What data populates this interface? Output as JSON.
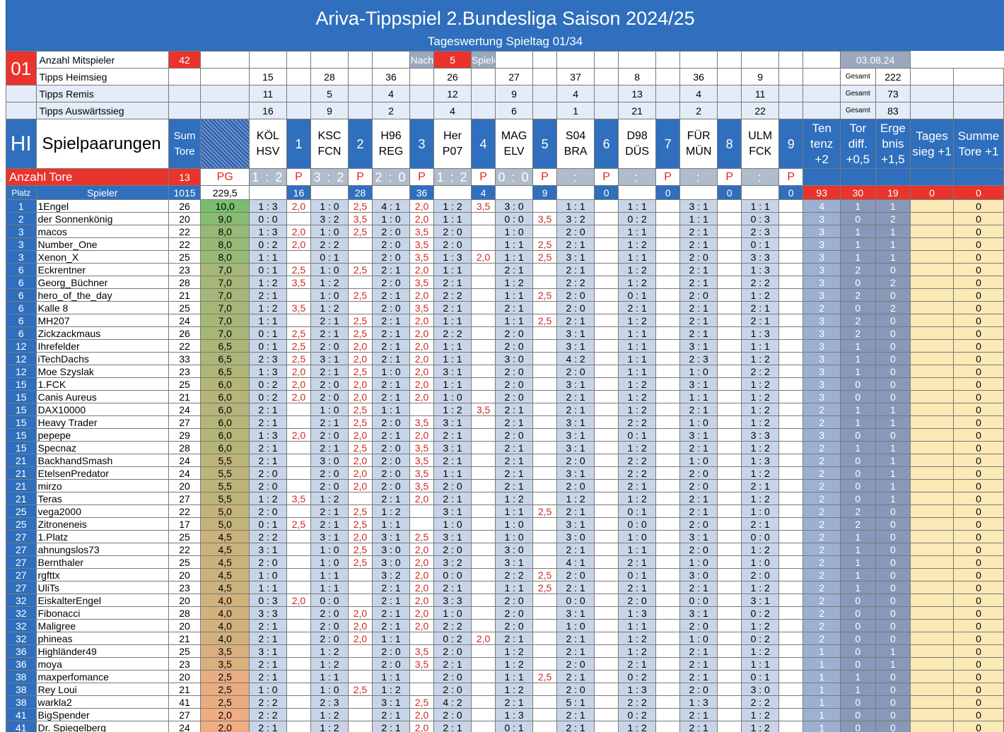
{
  "title": "Ariva-Tippspiel 2.Bundesliga Saison 2024/25",
  "subtitle": "Tageswertung Spieltag 01/34",
  "info": {
    "spieltag": "01",
    "anzahl_label": "Anzahl Mitspieler",
    "anzahl": "42",
    "nach": "Nach",
    "spiele_n": "5",
    "spielen": "Spielen",
    "date": "03.08.24"
  },
  "tipps": [
    {
      "label": "Tipps Heimsieg",
      "vals": [
        "15",
        "28",
        "36",
        "26",
        "27",
        "37",
        "8",
        "36",
        "9"
      ],
      "gesamt_label": "Gesamt",
      "gesamt": "222"
    },
    {
      "label": "Tipps Remis",
      "vals": [
        "11",
        "5",
        "4",
        "12",
        "9",
        "4",
        "13",
        "4",
        "11"
      ],
      "gesamt_label": "Gesamt",
      "gesamt": "73"
    },
    {
      "label": "Tipps Auswärtssieg",
      "vals": [
        "16",
        "9",
        "2",
        "4",
        "6",
        "1",
        "21",
        "2",
        "22"
      ],
      "gesamt_label": "Gesamt",
      "gesamt": "83"
    }
  ],
  "header": {
    "hi": "HI",
    "spielpaarungen": "Spielpaarungen",
    "sum_tore": "Sum Tore",
    "games": [
      {
        "teams": "KÖL HSV",
        "n": "1"
      },
      {
        "teams": "KSC FCN",
        "n": "2"
      },
      {
        "teams": "H96 REG",
        "n": "3"
      },
      {
        "teams": "Her P07",
        "n": "4"
      },
      {
        "teams": "MAG ELV",
        "n": "5"
      },
      {
        "teams": "S04 BRA",
        "n": "6"
      },
      {
        "teams": "D98 DÜS",
        "n": "7"
      },
      {
        "teams": "FÜR MÜN",
        "n": "8"
      },
      {
        "teams": "ULM FCK",
        "n": "9"
      }
    ],
    "bonus": [
      "Ten tenz +2",
      "Tor diff. +0,5",
      "Erge bnis +1,5",
      "Tages sieg +1",
      "Summe Tore +1"
    ]
  },
  "result_row": {
    "label": "Anzahl Tore",
    "tore": "13",
    "pg": "PG",
    "scores": [
      "1 : 2",
      "3 : 2",
      "2 : 0",
      "1 : 2",
      "0 : 0",
      ":",
      ":",
      ":",
      ":"
    ],
    "p": "P"
  },
  "sum_row": {
    "platz": "Platz",
    "spieler": "Spieler",
    "tore": "1015",
    "pg": "229,5",
    "game_pts": [
      "16",
      "28",
      "36",
      "4",
      "9",
      "0",
      "0",
      "0",
      "0"
    ],
    "bonus": [
      "93",
      "30",
      "19",
      "0",
      "0"
    ]
  },
  "players": [
    [
      "1",
      "1Engel",
      "26",
      "10,0",
      "1 : 3",
      "2,0",
      "1 : 0",
      "2,5",
      "4 : 1",
      "2,0",
      "1 : 2",
      "3,5",
      "3 : 0",
      "",
      "1 : 1",
      "",
      "1 : 1",
      "",
      "3 : 1",
      "",
      "1 : 1",
      "",
      "4",
      "1",
      "1",
      "",
      "0"
    ],
    [
      "2",
      "der Sonnenkönig",
      "20",
      "9,0",
      "0 : 0",
      "",
      "3 : 2",
      "3,5",
      "1 : 0",
      "2,0",
      "1 : 1",
      "",
      "0 : 0",
      "3,5",
      "3 : 2",
      "",
      "0 : 2",
      "",
      "1 : 1",
      "",
      "0 : 3",
      "",
      "3",
      "0",
      "2",
      "",
      "0"
    ],
    [
      "3",
      "macos",
      "22",
      "8,0",
      "1 : 3",
      "2,0",
      "1 : 0",
      "2,5",
      "2 : 0",
      "3,5",
      "2 : 0",
      "",
      "1 : 0",
      "",
      "2 : 0",
      "",
      "1 : 1",
      "",
      "2 : 1",
      "",
      "2 : 3",
      "",
      "3",
      "1",
      "1",
      "",
      "0"
    ],
    [
      "3",
      "Number_One",
      "22",
      "8,0",
      "0 : 2",
      "2,0",
      "2 : 2",
      "",
      "2 : 0",
      "3,5",
      "2 : 0",
      "",
      "1 : 1",
      "2,5",
      "2 : 1",
      "",
      "1 : 2",
      "",
      "2 : 1",
      "",
      "0 : 1",
      "",
      "3",
      "1",
      "1",
      "",
      "0"
    ],
    [
      "3",
      "Xenon_X",
      "25",
      "8,0",
      "1 : 1",
      "",
      "0 : 1",
      "",
      "2 : 0",
      "3,5",
      "1 : 3",
      "2,0",
      "1 : 1",
      "2,5",
      "3 : 1",
      "",
      "1 : 1",
      "",
      "2 : 0",
      "",
      "3 : 3",
      "",
      "3",
      "1",
      "1",
      "",
      "0"
    ],
    [
      "6",
      "Eckrentner",
      "23",
      "7,0",
      "0 : 1",
      "2,5",
      "1 : 0",
      "2,5",
      "2 : 1",
      "2,0",
      "1 : 1",
      "",
      "2 : 1",
      "",
      "2 : 1",
      "",
      "1 : 2",
      "",
      "2 : 1",
      "",
      "1 : 3",
      "",
      "3",
      "2",
      "0",
      "",
      "0"
    ],
    [
      "6",
      "Georg_Büchner",
      "28",
      "7,0",
      "1 : 2",
      "3,5",
      "1 : 2",
      "",
      "2 : 0",
      "3,5",
      "2 : 1",
      "",
      "1 : 2",
      "",
      "2 : 2",
      "",
      "1 : 2",
      "",
      "2 : 1",
      "",
      "2 : 2",
      "",
      "3",
      "0",
      "2",
      "",
      "0"
    ],
    [
      "6",
      "hero_of_the_day",
      "21",
      "7,0",
      "2 : 1",
      "",
      "1 : 0",
      "2,5",
      "2 : 1",
      "2,0",
      "2 : 2",
      "",
      "1 : 1",
      "2,5",
      "2 : 0",
      "",
      "0 : 1",
      "",
      "2 : 0",
      "",
      "1 : 2",
      "",
      "3",
      "2",
      "0",
      "",
      "0"
    ],
    [
      "6",
      "Kalle 8",
      "25",
      "7,0",
      "1 : 2",
      "3,5",
      "1 : 2",
      "",
      "2 : 0",
      "3,5",
      "2 : 1",
      "",
      "2 : 1",
      "",
      "2 : 0",
      "",
      "2 : 1",
      "",
      "2 : 1",
      "",
      "2 : 1",
      "",
      "2",
      "0",
      "2",
      "",
      "0"
    ],
    [
      "6",
      "MH207",
      "24",
      "7,0",
      "1 : 1",
      "",
      "2 : 1",
      "2,5",
      "2 : 1",
      "2,0",
      "1 : 1",
      "",
      "1 : 1",
      "2,5",
      "2 : 1",
      "",
      "1 : 2",
      "",
      "2 : 1",
      "",
      "2 : 1",
      "",
      "3",
      "2",
      "0",
      "",
      "0"
    ],
    [
      "6",
      "Zickzackmaus",
      "26",
      "7,0",
      "0 : 1",
      "2,5",
      "2 : 1",
      "2,5",
      "2 : 1",
      "2,0",
      "2 : 2",
      "",
      "2 : 0",
      "",
      "3 : 1",
      "",
      "1 : 1",
      "",
      "2 : 1",
      "",
      "1 : 3",
      "",
      "3",
      "2",
      "0",
      "",
      "0"
    ],
    [
      "12",
      "Ihrefelder",
      "22",
      "6,5",
      "0 : 1",
      "2,5",
      "2 : 0",
      "2,0",
      "2 : 1",
      "2,0",
      "1 : 1",
      "",
      "2 : 0",
      "",
      "3 : 1",
      "",
      "1 : 1",
      "",
      "3 : 1",
      "",
      "1 : 1",
      "",
      "3",
      "1",
      "0",
      "",
      "0"
    ],
    [
      "12",
      "iTechDachs",
      "33",
      "6,5",
      "2 : 3",
      "2,5",
      "3 : 1",
      "2,0",
      "2 : 1",
      "2,0",
      "1 : 1",
      "",
      "3 : 0",
      "",
      "4 : 2",
      "",
      "1 : 1",
      "",
      "2 : 3",
      "",
      "1 : 2",
      "",
      "3",
      "1",
      "0",
      "",
      "0"
    ],
    [
      "12",
      "Moe Szyslak",
      "23",
      "6,5",
      "1 : 3",
      "2,0",
      "2 : 1",
      "2,5",
      "1 : 0",
      "2,0",
      "3 : 1",
      "",
      "2 : 0",
      "",
      "2 : 0",
      "",
      "1 : 1",
      "",
      "1 : 0",
      "",
      "2 : 2",
      "",
      "3",
      "1",
      "0",
      "",
      "0"
    ],
    [
      "15",
      "1.FCK",
      "25",
      "6,0",
      "0 : 2",
      "2,0",
      "2 : 0",
      "2,0",
      "2 : 1",
      "2,0",
      "1 : 1",
      "",
      "2 : 0",
      "",
      "3 : 1",
      "",
      "1 : 2",
      "",
      "3 : 1",
      "",
      "1 : 2",
      "",
      "3",
      "0",
      "0",
      "",
      "0"
    ],
    [
      "15",
      "Canis Aureus",
      "21",
      "6,0",
      "0 : 2",
      "2,0",
      "2 : 0",
      "2,0",
      "2 : 1",
      "2,0",
      "1 : 0",
      "",
      "2 : 0",
      "",
      "2 : 1",
      "",
      "1 : 2",
      "",
      "1 : 1",
      "",
      "1 : 2",
      "",
      "3",
      "0",
      "0",
      "",
      "0"
    ],
    [
      "15",
      "DAX10000",
      "24",
      "6,0",
      "2 : 1",
      "",
      "1 : 0",
      "2,5",
      "1 : 1",
      "",
      "1 : 2",
      "3,5",
      "2 : 1",
      "",
      "2 : 1",
      "",
      "1 : 2",
      "",
      "2 : 1",
      "",
      "1 : 2",
      "",
      "2",
      "1",
      "1",
      "",
      "0"
    ],
    [
      "15",
      "Heavy Trader",
      "27",
      "6,0",
      "2 : 1",
      "",
      "2 : 1",
      "2,5",
      "2 : 0",
      "3,5",
      "3 : 1",
      "",
      "2 : 1",
      "",
      "3 : 1",
      "",
      "2 : 2",
      "",
      "1 : 0",
      "",
      "1 : 2",
      "",
      "2",
      "1",
      "1",
      "",
      "0"
    ],
    [
      "15",
      "pepepe",
      "29",
      "6,0",
      "1 : 3",
      "2,0",
      "2 : 0",
      "2,0",
      "2 : 1",
      "2,0",
      "2 : 1",
      "",
      "2 : 0",
      "",
      "3 : 1",
      "",
      "0 : 1",
      "",
      "3 : 1",
      "",
      "3 : 3",
      "",
      "3",
      "0",
      "0",
      "",
      "0"
    ],
    [
      "15",
      "Specnaz",
      "28",
      "6,0",
      "2 : 1",
      "",
      "2 : 1",
      "2,5",
      "2 : 0",
      "3,5",
      "3 : 1",
      "",
      "2 : 1",
      "",
      "3 : 1",
      "",
      "1 : 2",
      "",
      "2 : 1",
      "",
      "1 : 2",
      "",
      "2",
      "1",
      "1",
      "",
      "0"
    ],
    [
      "21",
      "BackhandSmash",
      "24",
      "5,5",
      "2 : 1",
      "",
      "3 : 0",
      "2,0",
      "2 : 0",
      "3,5",
      "2 : 1",
      "",
      "2 : 1",
      "",
      "2 : 0",
      "",
      "2 : 2",
      "",
      "1 : 0",
      "",
      "1 : 3",
      "",
      "2",
      "0",
      "1",
      "",
      "0"
    ],
    [
      "21",
      "EtelsenPredator",
      "24",
      "5,5",
      "2 : 0",
      "",
      "2 : 0",
      "2,0",
      "2 : 0",
      "3,5",
      "1 : 1",
      "",
      "2 : 1",
      "",
      "3 : 1",
      "",
      "2 : 2",
      "",
      "2 : 0",
      "",
      "1 : 2",
      "",
      "2",
      "0",
      "1",
      "",
      "0"
    ],
    [
      "21",
      "mirzo",
      "20",
      "5,5",
      "2 : 0",
      "",
      "2 : 0",
      "2,0",
      "2 : 0",
      "3,5",
      "2 : 0",
      "",
      "2 : 1",
      "",
      "2 : 0",
      "",
      "2 : 1",
      "",
      "2 : 0",
      "",
      "2 : 1",
      "",
      "2",
      "0",
      "1",
      "",
      "0"
    ],
    [
      "21",
      "Teras",
      "27",
      "5,5",
      "1 : 2",
      "3,5",
      "1 : 2",
      "",
      "2 : 1",
      "2,0",
      "2 : 1",
      "",
      "1 : 2",
      "",
      "1 : 2",
      "",
      "1 : 2",
      "",
      "2 : 1",
      "",
      "1 : 2",
      "",
      "2",
      "0",
      "1",
      "",
      "0"
    ],
    [
      "25",
      "vega2000",
      "22",
      "5,0",
      "2 : 0",
      "",
      "2 : 1",
      "2,5",
      "1 : 2",
      "",
      "3 : 1",
      "",
      "1 : 1",
      "2,5",
      "2 : 1",
      "",
      "0 : 1",
      "",
      "2 : 1",
      "",
      "1 : 0",
      "",
      "2",
      "2",
      "0",
      "",
      "0"
    ],
    [
      "25",
      "Zitroneneis",
      "17",
      "5,0",
      "0 : 1",
      "2,5",
      "2 : 1",
      "2,5",
      "1 : 1",
      "",
      "1 : 0",
      "",
      "1 : 0",
      "",
      "3 : 1",
      "",
      "0 : 0",
      "",
      "2 : 0",
      "",
      "2 : 1",
      "",
      "2",
      "2",
      "0",
      "",
      "0"
    ],
    [
      "27",
      "1.Platz",
      "25",
      "4,5",
      "2 : 2",
      "",
      "3 : 1",
      "2,0",
      "3 : 1",
      "2,5",
      "3 : 1",
      "",
      "1 : 0",
      "",
      "3 : 0",
      "",
      "1 : 0",
      "",
      "3 : 1",
      "",
      "0 : 0",
      "",
      "2",
      "1",
      "0",
      "",
      "0"
    ],
    [
      "27",
      "ahnungslos73",
      "22",
      "4,5",
      "3 : 1",
      "",
      "1 : 0",
      "2,5",
      "3 : 0",
      "2,0",
      "2 : 0",
      "",
      "3 : 0",
      "",
      "2 : 1",
      "",
      "1 : 1",
      "",
      "2 : 0",
      "",
      "1 : 2",
      "",
      "2",
      "1",
      "0",
      "",
      "0"
    ],
    [
      "27",
      "Bernthaler",
      "25",
      "4,5",
      "2 : 0",
      "",
      "1 : 0",
      "2,5",
      "3 : 0",
      "2,0",
      "3 : 2",
      "",
      "3 : 1",
      "",
      "4 : 1",
      "",
      "2 : 1",
      "",
      "1 : 0",
      "",
      "1 : 0",
      "",
      "2",
      "1",
      "0",
      "",
      "0"
    ],
    [
      "27",
      "rgfttx",
      "20",
      "4,5",
      "1 : 0",
      "",
      "1 : 1",
      "",
      "3 : 2",
      "2,0",
      "0 : 0",
      "",
      "2 : 2",
      "2,5",
      "2 : 0",
      "",
      "0 : 1",
      "",
      "3 : 0",
      "",
      "2 : 0",
      "",
      "2",
      "1",
      "0",
      "",
      "0"
    ],
    [
      "27",
      "UliTs",
      "23",
      "4,5",
      "1 : 1",
      "",
      "1 : 1",
      "",
      "2 : 1",
      "2,0",
      "2 : 1",
      "",
      "1 : 1",
      "2,5",
      "2 : 1",
      "",
      "2 : 1",
      "",
      "2 : 1",
      "",
      "1 : 2",
      "",
      "2",
      "1",
      "0",
      "",
      "0"
    ],
    [
      "32",
      "EiskalterEngel",
      "20",
      "4,0",
      "0 : 3",
      "2,0",
      "0 : 0",
      "",
      "2 : 1",
      "2,0",
      "3 : 3",
      "",
      "2 : 0",
      "",
      "0 : 0",
      "",
      "2 : 0",
      "",
      "0 : 0",
      "",
      "3 : 1",
      "",
      "2",
      "0",
      "0",
      "",
      "0"
    ],
    [
      "32",
      "Fibonacci",
      "28",
      "4,0",
      "3 : 3",
      "",
      "2 : 0",
      "2,0",
      "2 : 1",
      "2,0",
      "1 : 0",
      "",
      "2 : 0",
      "",
      "3 : 1",
      "",
      "1 : 3",
      "",
      "3 : 1",
      "",
      "0 : 2",
      "",
      "2",
      "0",
      "0",
      "",
      "0"
    ],
    [
      "32",
      "Maligree",
      "20",
      "4,0",
      "2 : 1",
      "",
      "2 : 0",
      "2,0",
      "2 : 1",
      "2,0",
      "2 : 2",
      "",
      "2 : 0",
      "",
      "1 : 0",
      "",
      "1 : 1",
      "",
      "2 : 0",
      "",
      "1 : 2",
      "",
      "2",
      "0",
      "0",
      "",
      "0"
    ],
    [
      "32",
      "phineas",
      "21",
      "4,0",
      "2 : 1",
      "",
      "2 : 0",
      "2,0",
      "1 : 1",
      "",
      "0 : 2",
      "2,0",
      "2 : 1",
      "",
      "2 : 1",
      "",
      "1 : 2",
      "",
      "1 : 0",
      "",
      "0 : 2",
      "",
      "2",
      "0",
      "0",
      "",
      "0"
    ],
    [
      "36",
      "Highländer49",
      "25",
      "3,5",
      "3 : 1",
      "",
      "1 : 2",
      "",
      "2 : 0",
      "3,5",
      "2 : 0",
      "",
      "1 : 2",
      "",
      "2 : 1",
      "",
      "1 : 2",
      "",
      "2 : 1",
      "",
      "1 : 2",
      "",
      "1",
      "0",
      "1",
      "",
      "0"
    ],
    [
      "36",
      "moya",
      "23",
      "3,5",
      "2 : 1",
      "",
      "1 : 2",
      "",
      "2 : 0",
      "3,5",
      "2 : 1",
      "",
      "1 : 2",
      "",
      "2 : 0",
      "",
      "2 : 1",
      "",
      "2 : 1",
      "",
      "1 : 1",
      "",
      "1",
      "0",
      "1",
      "",
      "0"
    ],
    [
      "38",
      "maxperfomance",
      "20",
      "2,5",
      "2 : 1",
      "",
      "1 : 1",
      "",
      "1 : 1",
      "",
      "2 : 0",
      "",
      "1 : 1",
      "2,5",
      "2 : 1",
      "",
      "0 : 2",
      "",
      "2 : 1",
      "",
      "0 : 1",
      "",
      "1",
      "1",
      "0",
      "",
      "0"
    ],
    [
      "38",
      "Rey Loui",
      "21",
      "2,5",
      "1 : 0",
      "",
      "1 : 0",
      "2,5",
      "1 : 2",
      "",
      "2 : 0",
      "",
      "1 : 2",
      "",
      "2 : 0",
      "",
      "1 : 3",
      "",
      "2 : 0",
      "",
      "3 : 0",
      "",
      "1",
      "1",
      "0",
      "",
      "0"
    ],
    [
      "38",
      "warkla2",
      "41",
      "2,5",
      "2 : 2",
      "",
      "2 : 3",
      "",
      "3 : 1",
      "2,5",
      "4 : 2",
      "",
      "2 : 1",
      "",
      "5 : 1",
      "",
      "2 : 2",
      "",
      "1 : 3",
      "",
      "2 : 2",
      "",
      "1",
      "0",
      "0",
      "",
      "0"
    ],
    [
      "41",
      "BigSpender",
      "27",
      "2,0",
      "2 : 2",
      "",
      "1 : 2",
      "",
      "2 : 1",
      "2,0",
      "2 : 0",
      "",
      "1 : 3",
      "",
      "2 : 1",
      "",
      "0 : 2",
      "",
      "2 : 1",
      "",
      "1 : 2",
      "",
      "1",
      "0",
      "0",
      "",
      "0"
    ],
    [
      "41",
      "Dr. Spiegelberg",
      "24",
      "2,0",
      "2 : 1",
      "",
      "1 : 2",
      "",
      "2 : 1",
      "2,0",
      "2 : 1",
      "",
      "0 : 1",
      "",
      "2 : 1",
      "",
      "1 : 2",
      "",
      "2 : 1",
      "",
      "1 : 2",
      "",
      "1",
      "0",
      "0",
      "",
      "0"
    ]
  ],
  "colors": {
    "blue": "#2f6fbd",
    "red": "#e8342c",
    "points": "#d02820",
    "yellow": "#fbe9b6"
  }
}
